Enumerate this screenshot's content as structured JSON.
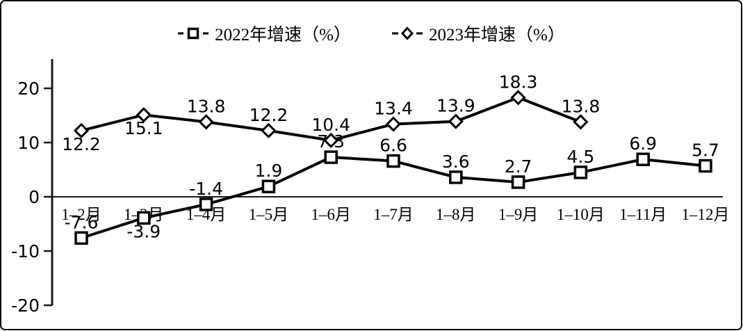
{
  "legend": {
    "item_2022": "2022年增速（%）",
    "item_2023": "2023年增速（%）"
  },
  "colors": {
    "line": "#000000",
    "axis": "#1a1a1a",
    "background": "#ffffff",
    "marker_fill": "#ffffff"
  },
  "chart_data": {
    "type": "line",
    "title": "",
    "xlabel": "",
    "ylabel": "",
    "categories": [
      "1–2月",
      "1–3月",
      "1–4月",
      "1–5月",
      "1–6月",
      "1–7月",
      "1–8月",
      "1–9月",
      "1–10月",
      "1–11月",
      "1–12月"
    ],
    "y_ticks": [
      20,
      10,
      0,
      -10,
      -20
    ],
    "ylim": [
      -20,
      25
    ],
    "grid": false,
    "legend_position": "top-center",
    "series": [
      {
        "name": "2022年增速（%）",
        "marker": "square",
        "values": [
          -7.6,
          -3.9,
          -1.4,
          1.9,
          7.3,
          6.6,
          3.6,
          2.7,
          4.5,
          6.9,
          5.7
        ],
        "labels": [
          "-7.6",
          "-3.9",
          "-1.4",
          "1.9",
          "7.3",
          "6.6",
          "3.6",
          "2.7",
          "4.5",
          "6.9",
          "5.7"
        ],
        "label_side": [
          "above",
          "below",
          "above",
          "above",
          "above",
          "above",
          "above",
          "above",
          "above",
          "above",
          "above"
        ]
      },
      {
        "name": "2023年增速（%）",
        "marker": "diamond",
        "values": [
          12.2,
          15.1,
          13.8,
          12.2,
          10.4,
          13.4,
          13.9,
          18.3,
          13.8
        ],
        "labels": [
          "12.2",
          "15.1",
          "13.8",
          "12.2",
          "10.4",
          "13.4",
          "13.9",
          "18.3",
          "13.8"
        ],
        "label_side": [
          "below",
          "below",
          "above",
          "above",
          "above",
          "above",
          "above",
          "above",
          "above"
        ]
      }
    ]
  }
}
